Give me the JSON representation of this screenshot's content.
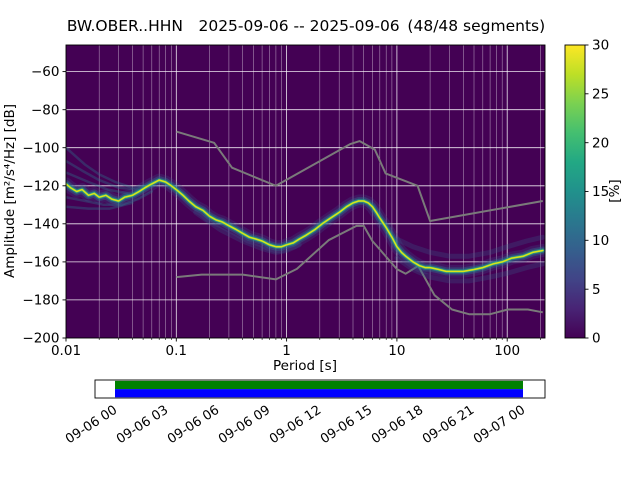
{
  "chart_data": {
    "type": "heatmap",
    "subtype": "ppsd-probabilistic-power-spectral-density",
    "title": "BW.OBER..HHN  2025-09-06 -- 2025-09-06 (48/48 segments)",
    "station_id": "BW.OBER..HHN",
    "date_range": "2025-09-06 -- 2025-09-06",
    "segments": "48/48 segments",
    "xlabel": "Period [s]",
    "ylabel": "Amplitude [m²/s⁴/Hz] [dB]",
    "x_scale": "log",
    "xlim": [
      0.01,
      220
    ],
    "ylim": [
      -200,
      -46
    ],
    "x_ticks": [
      0.01,
      0.1,
      1,
      10,
      100
    ],
    "x_tick_labels": [
      "0.01",
      "0.1",
      "1",
      "10",
      "100"
    ],
    "y_ticks": [
      -60,
      -80,
      -100,
      -120,
      -140,
      -160,
      -180,
      -200
    ],
    "background_color": "#440154",
    "grid_color": "#ffffff",
    "noise_model_color": "#7a7a7a",
    "colorbar": {
      "label": "[%]",
      "min": 0,
      "max": 30,
      "ticks": [
        0,
        5,
        10,
        15,
        20,
        25,
        30
      ],
      "colormap": [
        "#440154",
        "#482475",
        "#414487",
        "#355f8d",
        "#2a788e",
        "#21918c",
        "#22a884",
        "#44bf70",
        "#7ad151",
        "#bddf26",
        "#fde725"
      ]
    },
    "psd_mode": [
      [
        0.01,
        -119
      ],
      [
        0.011,
        -121
      ],
      [
        0.0125,
        -123
      ],
      [
        0.014,
        -122
      ],
      [
        0.016,
        -125
      ],
      [
        0.018,
        -124
      ],
      [
        0.02,
        -126
      ],
      [
        0.023,
        -125
      ],
      [
        0.026,
        -127
      ],
      [
        0.03,
        -128
      ],
      [
        0.034,
        -126
      ],
      [
        0.04,
        -125
      ],
      [
        0.046,
        -123
      ],
      [
        0.052,
        -121
      ],
      [
        0.06,
        -119
      ],
      [
        0.07,
        -117
      ],
      [
        0.08,
        -118
      ],
      [
        0.09,
        -120
      ],
      [
        0.1,
        -122
      ],
      [
        0.115,
        -125
      ],
      [
        0.13,
        -128
      ],
      [
        0.15,
        -131
      ],
      [
        0.175,
        -133
      ],
      [
        0.2,
        -136
      ],
      [
        0.23,
        -138
      ],
      [
        0.26,
        -139
      ],
      [
        0.3,
        -141
      ],
      [
        0.35,
        -143
      ],
      [
        0.4,
        -145
      ],
      [
        0.46,
        -147
      ],
      [
        0.53,
        -148
      ],
      [
        0.6,
        -149
      ],
      [
        0.7,
        -151
      ],
      [
        0.8,
        -152
      ],
      [
        0.9,
        -152
      ],
      [
        1.0,
        -151
      ],
      [
        1.15,
        -150
      ],
      [
        1.3,
        -148
      ],
      [
        1.5,
        -146
      ],
      [
        1.8,
        -143
      ],
      [
        2.1,
        -140
      ],
      [
        2.5,
        -137
      ],
      [
        3.0,
        -134
      ],
      [
        3.5,
        -131
      ],
      [
        4.0,
        -129
      ],
      [
        4.5,
        -128
      ],
      [
        5.0,
        -128
      ],
      [
        5.5,
        -129
      ],
      [
        6.0,
        -131
      ],
      [
        6.5,
        -134
      ],
      [
        7.0,
        -137
      ],
      [
        8.0,
        -142
      ],
      [
        9.0,
        -147
      ],
      [
        10.0,
        -152
      ],
      [
        11.0,
        -155
      ],
      [
        12.0,
        -157
      ],
      [
        14.0,
        -160
      ],
      [
        16.0,
        -162
      ],
      [
        18.0,
        -163
      ],
      [
        20.0,
        -163
      ],
      [
        24.0,
        -164
      ],
      [
        28.0,
        -165
      ],
      [
        34.0,
        -165
      ],
      [
        40.0,
        -165
      ],
      [
        50.0,
        -164
      ],
      [
        60.0,
        -163
      ],
      [
        75.0,
        -161
      ],
      [
        90.0,
        -160
      ],
      [
        110,
        -158
      ],
      [
        140,
        -157
      ],
      [
        170,
        -155
      ],
      [
        210,
        -154
      ]
    ],
    "noise_models": {
      "high": [
        [
          0.1,
          -91.5
        ],
        [
          0.22,
          -97.4
        ],
        [
          0.32,
          -110.5
        ],
        [
          0.8,
          -120.0
        ],
        [
          3.8,
          -98.0
        ],
        [
          4.6,
          -96.5
        ],
        [
          6.3,
          -101.0
        ],
        [
          7.9,
          -113.5
        ],
        [
          15.4,
          -120.0
        ],
        [
          20.0,
          -138.5
        ],
        [
          210,
          -128.0
        ]
      ],
      "low": [
        [
          0.1,
          -168.0
        ],
        [
          0.17,
          -166.7
        ],
        [
          0.4,
          -166.7
        ],
        [
          0.8,
          -169.2
        ],
        [
          1.24,
          -163.7
        ],
        [
          2.4,
          -148.6
        ],
        [
          4.3,
          -141.1
        ],
        [
          5.0,
          -141.1
        ],
        [
          6.0,
          -149.0
        ],
        [
          10.0,
          -163.8
        ],
        [
          12.0,
          -166.2
        ],
        [
          15.6,
          -162.1
        ],
        [
          21.9,
          -177.5
        ],
        [
          31.6,
          -185.0
        ],
        [
          45.0,
          -187.5
        ],
        [
          70.0,
          -187.5
        ],
        [
          101.0,
          -185.0
        ],
        [
          154.0,
          -185.0
        ],
        [
          210,
          -186.5
        ]
      ]
    },
    "spread_branches": [
      {
        "kind": "faint",
        "points": [
          [
            0.01,
            -100
          ],
          [
            0.012,
            -104
          ],
          [
            0.015,
            -109
          ],
          [
            0.02,
            -114
          ],
          [
            0.028,
            -118
          ],
          [
            0.04,
            -121
          ],
          [
            0.055,
            -120
          ],
          [
            0.07,
            -117
          ]
        ]
      },
      {
        "kind": "faint",
        "points": [
          [
            0.01,
            -107
          ],
          [
            0.014,
            -112
          ],
          [
            0.02,
            -117
          ],
          [
            0.03,
            -121
          ],
          [
            0.045,
            -122
          ]
        ]
      },
      {
        "kind": "faint",
        "points": [
          [
            0.01,
            -113
          ],
          [
            0.016,
            -118
          ],
          [
            0.024,
            -122
          ],
          [
            0.036,
            -124
          ]
        ]
      },
      {
        "kind": "faint",
        "points": [
          [
            0.01,
            -126
          ],
          [
            0.015,
            -128
          ],
          [
            0.022,
            -130
          ],
          [
            0.032,
            -130
          ],
          [
            0.045,
            -127
          ],
          [
            0.06,
            -123
          ]
        ]
      },
      {
        "kind": "faint",
        "points": [
          [
            0.01,
            -131
          ],
          [
            0.016,
            -132
          ],
          [
            0.025,
            -132
          ],
          [
            0.04,
            -129
          ]
        ]
      },
      {
        "kind": "halo",
        "points": [
          [
            10,
            -148
          ],
          [
            14,
            -152
          ],
          [
            20,
            -155
          ],
          [
            30,
            -157
          ],
          [
            45,
            -157
          ],
          [
            70,
            -155
          ],
          [
            100,
            -152
          ],
          [
            150,
            -149
          ],
          [
            210,
            -147
          ]
        ]
      },
      {
        "kind": "halo",
        "points": [
          [
            10,
            -158
          ],
          [
            14,
            -164
          ],
          [
            20,
            -168
          ],
          [
            30,
            -170
          ],
          [
            45,
            -170
          ],
          [
            70,
            -168
          ],
          [
            100,
            -166
          ],
          [
            150,
            -163
          ],
          [
            210,
            -161
          ]
        ]
      },
      {
        "kind": "halo",
        "points": [
          [
            0.15,
            -134
          ],
          [
            0.25,
            -143
          ],
          [
            0.4,
            -149
          ],
          [
            0.6,
            -153
          ],
          [
            0.8,
            -155
          ],
          [
            1.0,
            -154
          ],
          [
            1.3,
            -151
          ]
        ]
      }
    ]
  },
  "timeline": {
    "labels": [
      "09-06 00",
      "09-06 03",
      "09-06 06",
      "09-06 09",
      "09-06 12",
      "09-06 15",
      "09-06 18",
      "09-06 21",
      "09-07 00"
    ],
    "colors": {
      "covered": "#008000",
      "data_extent": "#0000ff",
      "axis_background": "#ffffff"
    }
  }
}
